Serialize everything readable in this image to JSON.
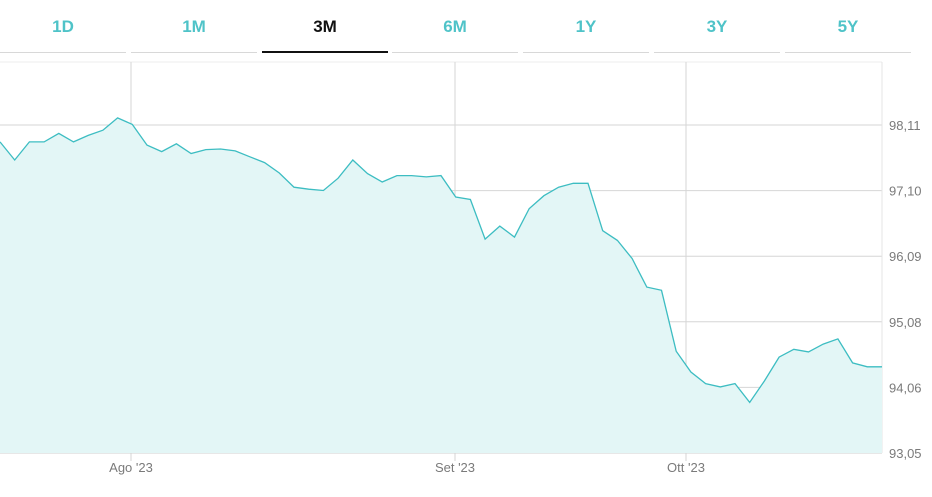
{
  "tabs": [
    {
      "label": "1D",
      "active": false
    },
    {
      "label": "1M",
      "active": false
    },
    {
      "label": "3M",
      "active": true
    },
    {
      "label": "6M",
      "active": false
    },
    {
      "label": "1Y",
      "active": false
    },
    {
      "label": "3Y",
      "active": false
    },
    {
      "label": "5Y",
      "active": false
    }
  ],
  "colors": {
    "accent": "#4fc3c8",
    "line": "#3dbdc2",
    "fill": "#e3f6f6",
    "grid": "#d6d6d6",
    "active_tab": "#111111"
  },
  "chart_data": {
    "type": "area",
    "y_ticks": [
      "98,11",
      "97,10",
      "96,09",
      "95,08",
      "94,06",
      "93,05"
    ],
    "x_ticks": [
      {
        "label": "Ago '23",
        "index": 9
      },
      {
        "label": "Set '23",
        "index": 30
      },
      {
        "label": "Ott '23",
        "index": 45
      }
    ],
    "ylim": [
      93.05,
      99.0
    ],
    "grid": true,
    "values": [
      97.85,
      97.57,
      97.85,
      97.85,
      97.98,
      97.85,
      97.95,
      98.03,
      98.22,
      98.12,
      97.8,
      97.7,
      97.82,
      97.67,
      97.73,
      97.74,
      97.71,
      97.62,
      97.53,
      97.37,
      97.15,
      97.12,
      97.1,
      97.29,
      97.57,
      97.36,
      97.23,
      97.33,
      97.33,
      97.31,
      97.33,
      97.0,
      96.96,
      96.35,
      96.55,
      96.38,
      96.82,
      97.02,
      97.15,
      97.21,
      97.21,
      96.48,
      96.33,
      96.05,
      95.61,
      95.56,
      94.62,
      94.3,
      94.12,
      94.07,
      94.12,
      93.83,
      94.16,
      94.53,
      94.65,
      94.61,
      94.73,
      94.81,
      94.44,
      94.38,
      94.38
    ]
  }
}
